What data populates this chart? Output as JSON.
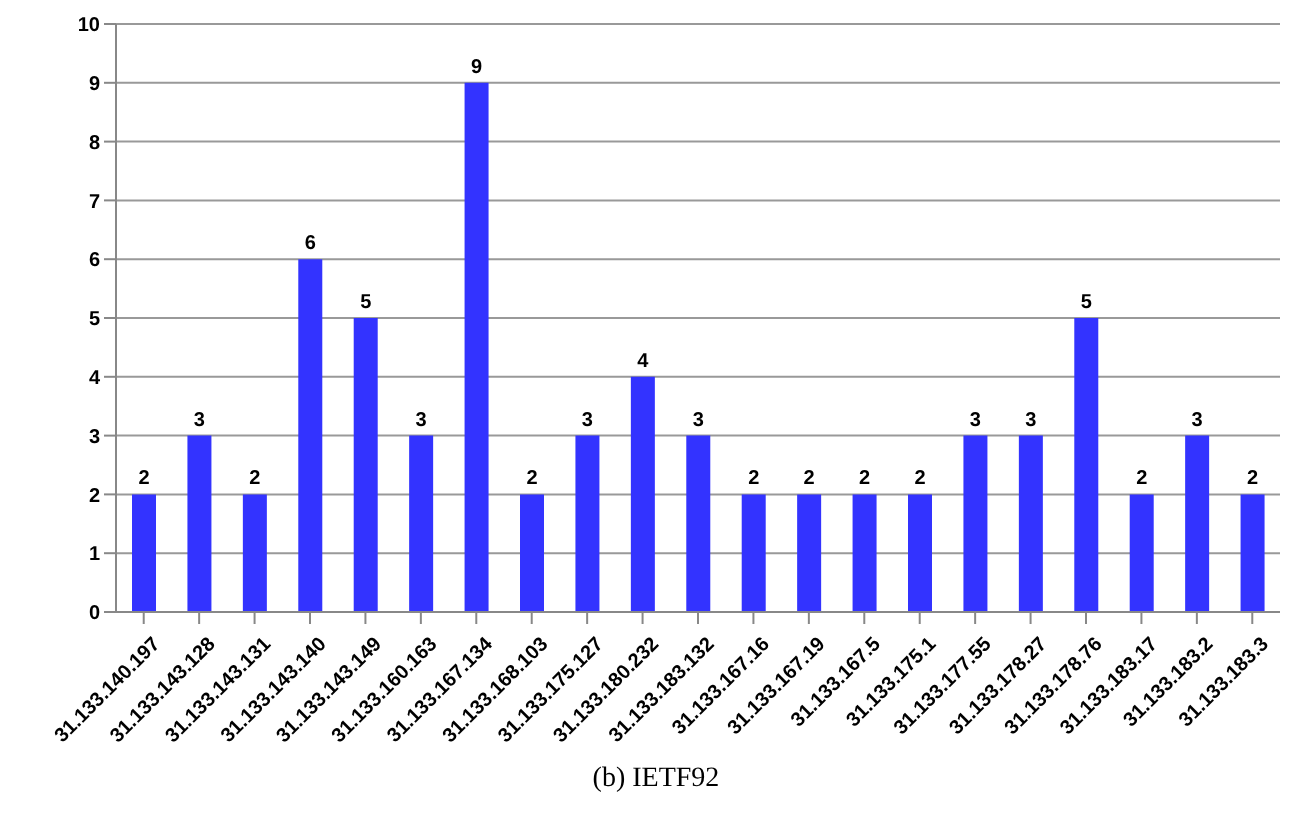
{
  "chart_data": {
    "type": "bar",
    "title": "(b) IETF92",
    "categories": [
      "31.133.140.197",
      "31.133.143.128",
      "31.133.143.131",
      "31.133.143.140",
      "31.133.143.149",
      "31.133.160.163",
      "31.133.167.134",
      "31.133.168.103",
      "31.133.175.127",
      "31.133.180.232",
      "31.133.183.132",
      "31.133.167.16",
      "31.133.167.19",
      "31.133.167.5",
      "31.133.175.1",
      "31.133.177.55",
      "31.133.178.27",
      "31.133.178.76",
      "31.133.183.17",
      "31.133.183.2",
      "31.133.183.3"
    ],
    "values": [
      2,
      3,
      2,
      6,
      5,
      3,
      9,
      2,
      3,
      4,
      3,
      2,
      2,
      2,
      2,
      3,
      3,
      5,
      2,
      3,
      2
    ],
    "color": "#3333ff",
    "ylim": [
      0,
      10
    ],
    "yticks": [
      0,
      1,
      2,
      3,
      4,
      5,
      6,
      7,
      8,
      9,
      10
    ],
    "grid": "y",
    "data_labels": true
  }
}
